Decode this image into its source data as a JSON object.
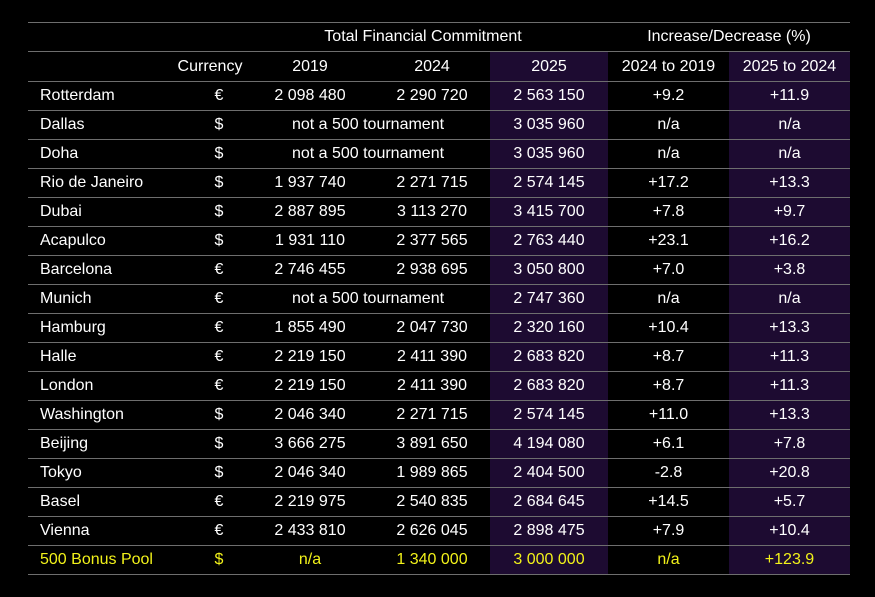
{
  "header": {
    "group_total": "Total Financial Commitment",
    "group_change": "Increase/Decrease (%)",
    "col_currency": "Currency",
    "col_2019": "2019",
    "col_2024": "2024",
    "col_2025": "2025",
    "col_change_2024_2019": "2024 to 2019",
    "col_change_2025_2024": "2025 to 2024"
  },
  "rows": [
    {
      "city": "Rotterdam",
      "currency": "€",
      "y2019": "2 098 480",
      "y2024": "2 290 720",
      "y2025": "2 563 150",
      "chg1": "+9.2",
      "chg2": "+11.9"
    },
    {
      "city": "Dallas",
      "currency": "$",
      "note": "not a 500 tournament",
      "y2025": "3 035 960",
      "chg1": "n/a",
      "chg2": "n/a"
    },
    {
      "city": "Doha",
      "currency": "$",
      "note": "not a 500 tournament",
      "y2025": "3 035 960",
      "chg1": "n/a",
      "chg2": "n/a"
    },
    {
      "city": "Rio de Janeiro",
      "currency": "$",
      "y2019": "1 937 740",
      "y2024": "2 271 715",
      "y2025": "2 574 145",
      "chg1": "+17.2",
      "chg2": "+13.3"
    },
    {
      "city": "Dubai",
      "currency": "$",
      "y2019": "2 887 895",
      "y2024": "3 113 270",
      "y2025": "3 415 700",
      "chg1": "+7.8",
      "chg2": "+9.7"
    },
    {
      "city": "Acapulco",
      "currency": "$",
      "y2019": "1 931 110",
      "y2024": "2 377 565",
      "y2025": "2 763 440",
      "chg1": "+23.1",
      "chg2": "+16.2"
    },
    {
      "city": "Barcelona",
      "currency": "€",
      "y2019": "2 746 455",
      "y2024": "2 938 695",
      "y2025": "3 050 800",
      "chg1": "+7.0",
      "chg2": "+3.8"
    },
    {
      "city": "Munich",
      "currency": "€",
      "note": "not a 500 tournament",
      "y2025": "2 747 360",
      "chg1": "n/a",
      "chg2": "n/a"
    },
    {
      "city": "Hamburg",
      "currency": "€",
      "y2019": "1 855 490",
      "y2024": "2 047 730",
      "y2025": "2 320 160",
      "chg1": "+10.4",
      "chg2": "+13.3"
    },
    {
      "city": "Halle",
      "currency": "€",
      "y2019": "2 219 150",
      "y2024": "2 411 390",
      "y2025": "2 683 820",
      "chg1": "+8.7",
      "chg2": "+11.3"
    },
    {
      "city": "London",
      "currency": "€",
      "y2019": "2 219 150",
      "y2024": "2 411 390",
      "y2025": "2 683 820",
      "chg1": "+8.7",
      "chg2": "+11.3"
    },
    {
      "city": "Washington",
      "currency": "$",
      "y2019": "2 046 340",
      "y2024": "2 271 715",
      "y2025": "2 574 145",
      "chg1": "+11.0",
      "chg2": "+13.3"
    },
    {
      "city": "Beijing",
      "currency": "$",
      "y2019": "3 666 275",
      "y2024": "3 891 650",
      "y2025": "4 194 080",
      "chg1": "+6.1",
      "chg2": "+7.8"
    },
    {
      "city": "Tokyo",
      "currency": "$",
      "y2019": "2 046 340",
      "y2024": "1 989 865",
      "y2025": "2 404 500",
      "chg1": "-2.8",
      "chg2": "+20.8"
    },
    {
      "city": "Basel",
      "currency": "€",
      "y2019": "2 219 975",
      "y2024": "2 540 835",
      "y2025": "2 684 645",
      "chg1": "+14.5",
      "chg2": "+5.7"
    },
    {
      "city": "Vienna",
      "currency": "€",
      "y2019": "2 433 810",
      "y2024": "2 626 045",
      "y2025": "2 898 475",
      "chg1": "+7.9",
      "chg2": "+10.4"
    }
  ],
  "bonus": {
    "city": "500 Bonus Pool",
    "currency": "$",
    "y2019": "n/a",
    "y2024": "1 340 000",
    "y2025": "3 000 000",
    "chg1": "n/a",
    "chg2": "+123.9"
  },
  "colors": {
    "background": "#000000",
    "highlight_column": "#1d0b31",
    "bonus_text": "#f2f21a",
    "rule": "#6e6e6e"
  }
}
